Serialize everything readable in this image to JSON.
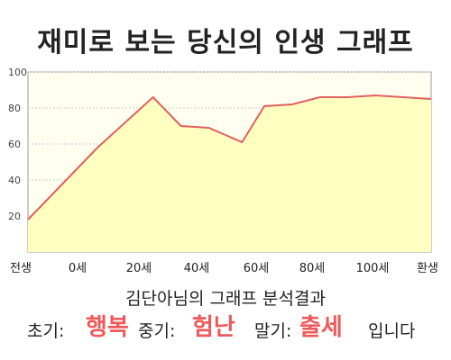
{
  "title": "재미로 보는 당신의 인생 그래프",
  "chart_data": {
    "type": "area",
    "x_tick_labels": [
      "전생",
      "0세",
      "20세",
      "40세",
      "60세",
      "80세",
      "100세",
      "환생"
    ],
    "y_ticks": [
      20,
      40,
      60,
      80,
      100
    ],
    "ylim": [
      0,
      100
    ],
    "series": [
      {
        "x": [
          -25,
          0,
          20,
          30,
          40,
          52,
          60,
          70,
          80,
          90,
          100,
          110,
          120
        ],
        "values": [
          18,
          58,
          86,
          70,
          69,
          61,
          81,
          82,
          86,
          86,
          87,
          86,
          85
        ]
      }
    ],
    "line_color": "#e06060",
    "fill_color": "#ffffc0",
    "grid": true
  },
  "analysis": {
    "heading": "김단아님의 그래프 분석결과",
    "early_label": "초기:",
    "early_value": "행복",
    "middle_label": "중기:",
    "middle_value": "험난",
    "late_label": "말기:",
    "late_value": "출세",
    "ending": "입니다",
    "accent_color": "#ec5a5a"
  }
}
